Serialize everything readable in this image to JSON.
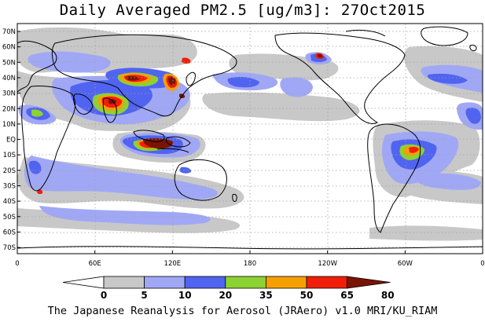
{
  "title": "Daily Averaged PM2.5 [ug/m3]: 27Oct2015",
  "credit": "The Japanese Reanalysis for Aerosol (JRAero) v1.0 MRI/KU_RIAM",
  "lat_labels": [
    "70N",
    "60N",
    "50N",
    "40N",
    "30N",
    "20N",
    "10N",
    "EQ",
    "10S",
    "20S",
    "30S",
    "40S",
    "50S",
    "60S",
    "70S"
  ],
  "lon_labels": [
    "0",
    "60E",
    "120E",
    "180",
    "120W",
    "60W",
    "0"
  ],
  "colorbar": {
    "labels": [
      "0",
      "5",
      "10",
      "20",
      "35",
      "50",
      "65",
      "80"
    ],
    "colors": [
      "#ffffff",
      "#c8c8c8",
      "#a0a8f5",
      "#5064f0",
      "#8cd232",
      "#f5a000",
      "#f01e0a",
      "#7a1400"
    ]
  },
  "layers": {
    "gray": "#c8c8c8",
    "lightblue": "#a0a8f5",
    "blue": "#5064f0",
    "green": "#8cd232",
    "orange": "#f5a000",
    "red": "#f01e0a",
    "darkred": "#7a1400"
  }
}
